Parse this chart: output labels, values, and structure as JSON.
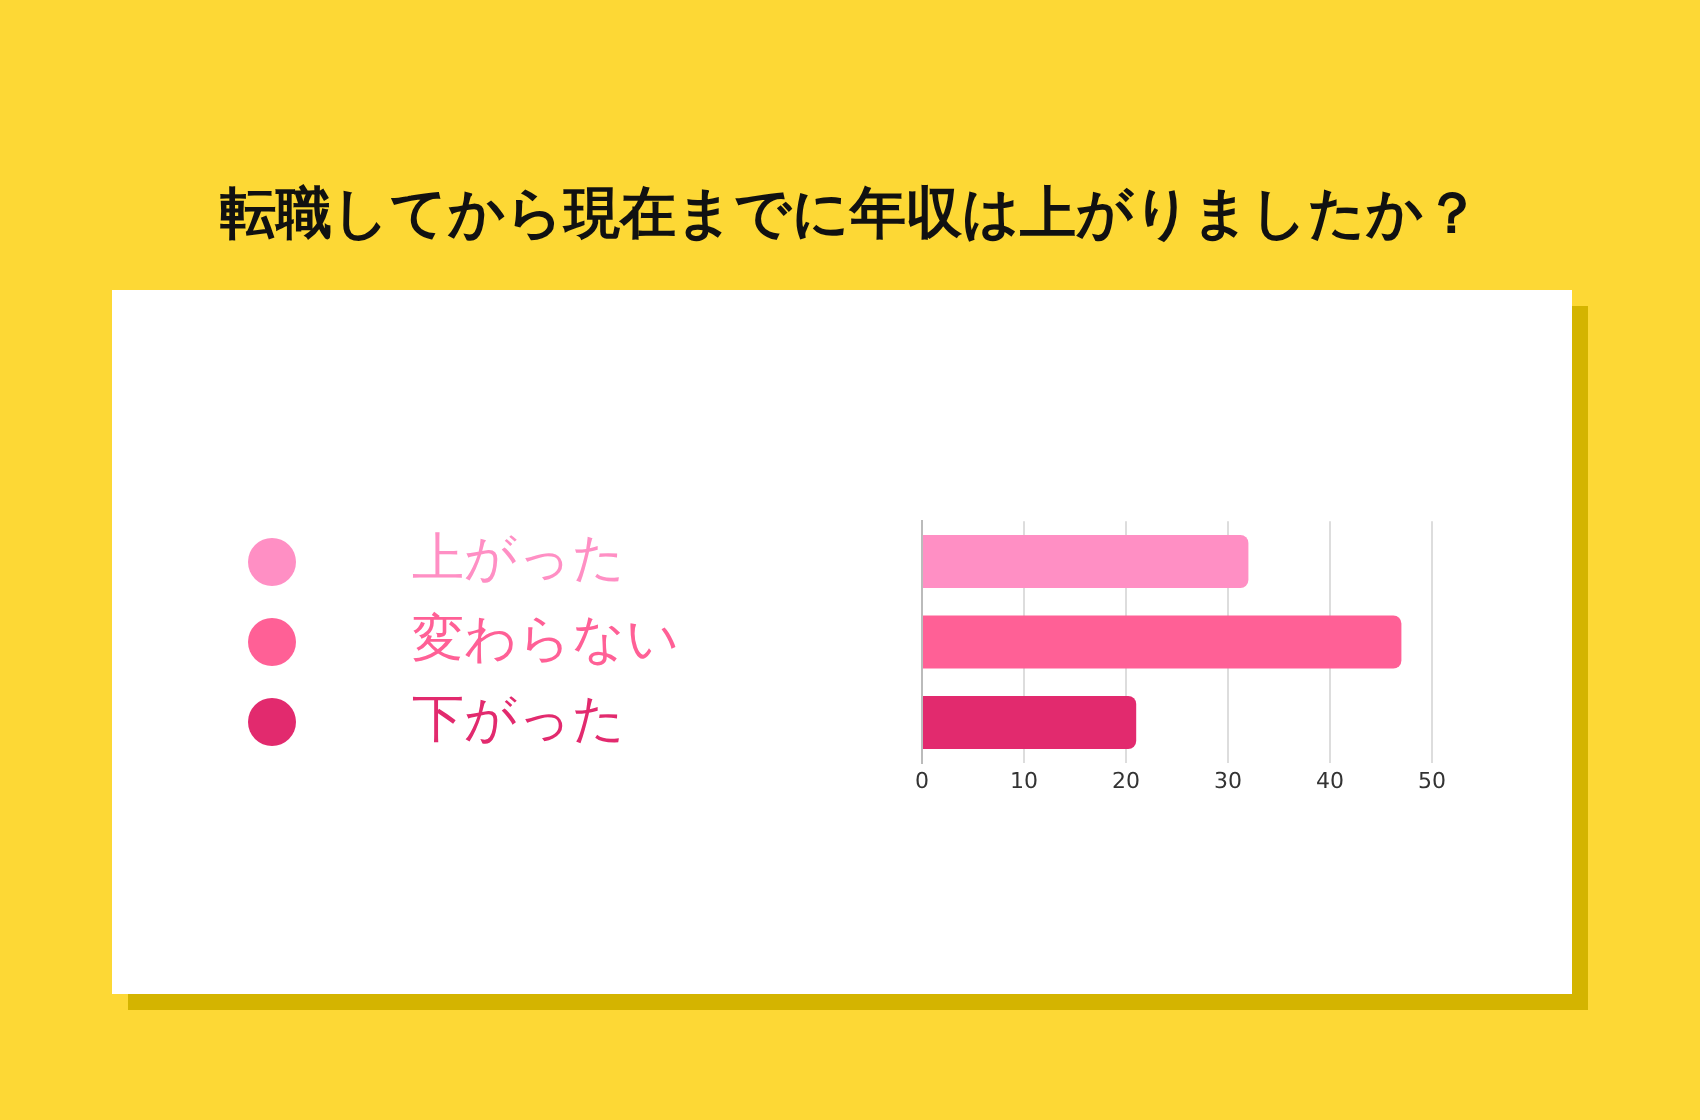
{
  "chart_data": {
    "type": "bar",
    "orientation": "horizontal",
    "title": "転職してから現在までに年収は上がりましたか？",
    "categories": [
      "上がった",
      "変わらない",
      "下がった"
    ],
    "values": [
      32,
      47,
      21
    ],
    "colors": [
      "#ff8fc4",
      "#ff6096",
      "#e22a6e"
    ],
    "xlim": [
      0,
      50
    ],
    "xticks": [
      0,
      10,
      20,
      30,
      40,
      50
    ],
    "grid": "x"
  }
}
